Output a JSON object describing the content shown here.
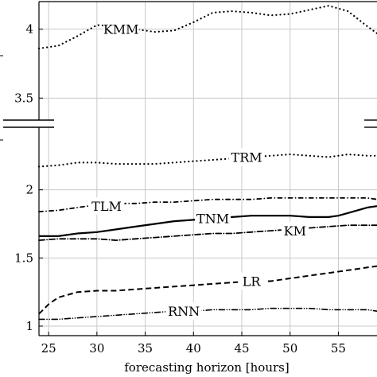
{
  "chart_data": {
    "type": "line",
    "title": "",
    "xlabel": "forecasting horizon [hours]",
    "ylabel": "",
    "xlim": [
      24,
      59
    ],
    "ylim": [
      1,
      4.2
    ],
    "y_axis_break": [
      2.5,
      3.3
    ],
    "grid": true,
    "x_ticks": [
      25,
      30,
      35,
      40,
      45,
      50,
      55
    ],
    "y_ticks": [
      1,
      1.5,
      2,
      3.5,
      4
    ],
    "x_tick_labels": [
      "25",
      "30",
      "35",
      "40",
      "45",
      "50",
      "55"
    ],
    "y_tick_labels": [
      "1",
      "1.5",
      "2",
      "3.5",
      "4"
    ],
    "series": [
      {
        "name": "KMM",
        "style": "dotted",
        "x": [
          24,
          26,
          28,
          30,
          32,
          34,
          36,
          38,
          40,
          42,
          44,
          46,
          48,
          50,
          52,
          54,
          56,
          58,
          59
        ],
        "y": [
          3.86,
          3.88,
          3.95,
          4.03,
          4.02,
          4.0,
          3.98,
          3.99,
          4.05,
          4.12,
          4.13,
          4.12,
          4.1,
          4.11,
          4.14,
          4.17,
          4.13,
          4.02,
          3.97
        ]
      },
      {
        "name": "TRM",
        "style": "dotted",
        "x": [
          24,
          26,
          28,
          30,
          32,
          34,
          36,
          38,
          40,
          42,
          44,
          46,
          48,
          50,
          52,
          54,
          56,
          58,
          59
        ],
        "y": [
          2.17,
          2.18,
          2.2,
          2.2,
          2.19,
          2.19,
          2.19,
          2.2,
          2.21,
          2.22,
          2.23,
          2.24,
          2.25,
          2.26,
          2.25,
          2.24,
          2.26,
          2.25,
          2.25
        ]
      },
      {
        "name": "TLM",
        "style": "loosely-dashdotted",
        "x": [
          24,
          26,
          28,
          30,
          32,
          34,
          36,
          38,
          40,
          42,
          44,
          46,
          48,
          50,
          52,
          54,
          56,
          58,
          59
        ],
        "y": [
          1.84,
          1.85,
          1.87,
          1.89,
          1.9,
          1.9,
          1.91,
          1.91,
          1.92,
          1.93,
          1.93,
          1.93,
          1.94,
          1.94,
          1.94,
          1.94,
          1.94,
          1.94,
          1.93
        ]
      },
      {
        "name": "TNM",
        "style": "solid",
        "x": [
          24,
          26,
          28,
          30,
          32,
          34,
          36,
          38,
          40,
          42,
          44,
          46,
          48,
          50,
          52,
          54,
          55,
          56,
          58,
          59
        ],
        "y": [
          1.66,
          1.66,
          1.68,
          1.69,
          1.71,
          1.73,
          1.75,
          1.77,
          1.78,
          1.79,
          1.8,
          1.81,
          1.81,
          1.81,
          1.8,
          1.8,
          1.81,
          1.83,
          1.87,
          1.88
        ]
      },
      {
        "name": "KM",
        "style": "dashdotted",
        "x": [
          24,
          26,
          28,
          30,
          32,
          34,
          36,
          38,
          40,
          42,
          44,
          46,
          48,
          50,
          52,
          54,
          56,
          58,
          59
        ],
        "y": [
          1.63,
          1.64,
          1.64,
          1.64,
          1.63,
          1.64,
          1.65,
          1.66,
          1.67,
          1.68,
          1.68,
          1.69,
          1.7,
          1.71,
          1.72,
          1.73,
          1.74,
          1.74,
          1.74
        ]
      },
      {
        "name": "LR",
        "style": "dashed",
        "x": [
          24,
          25,
          26,
          28,
          30,
          32,
          34,
          36,
          38,
          40,
          42,
          44,
          46,
          48,
          50,
          52,
          54,
          56,
          58,
          59
        ],
        "y": [
          1.09,
          1.16,
          1.21,
          1.25,
          1.26,
          1.26,
          1.27,
          1.28,
          1.29,
          1.3,
          1.31,
          1.32,
          1.33,
          1.33,
          1.35,
          1.37,
          1.39,
          1.41,
          1.43,
          1.44
        ]
      },
      {
        "name": "RNN",
        "style": "dashdotdotted",
        "x": [
          24,
          26,
          28,
          30,
          32,
          34,
          36,
          38,
          40,
          42,
          44,
          46,
          48,
          50,
          52,
          54,
          56,
          58,
          59
        ],
        "y": [
          1.05,
          1.05,
          1.06,
          1.07,
          1.08,
          1.09,
          1.1,
          1.11,
          1.11,
          1.12,
          1.12,
          1.12,
          1.13,
          1.13,
          1.13,
          1.12,
          1.12,
          1.12,
          1.11
        ]
      }
    ],
    "series_label_positions": [
      {
        "name": "KMM",
        "x": 32.5,
        "y": 4.0
      },
      {
        "name": "TRM",
        "x": 45.5,
        "y": 2.24
      },
      {
        "name": "TLM",
        "x": 31.0,
        "y": 1.88
      },
      {
        "name": "TNM",
        "x": 42.0,
        "y": 1.79
      },
      {
        "name": "KM",
        "x": 50.5,
        "y": 1.7
      },
      {
        "name": "LR",
        "x": 46.0,
        "y": 1.33
      },
      {
        "name": "RNN",
        "x": 39.0,
        "y": 1.11
      }
    ]
  }
}
